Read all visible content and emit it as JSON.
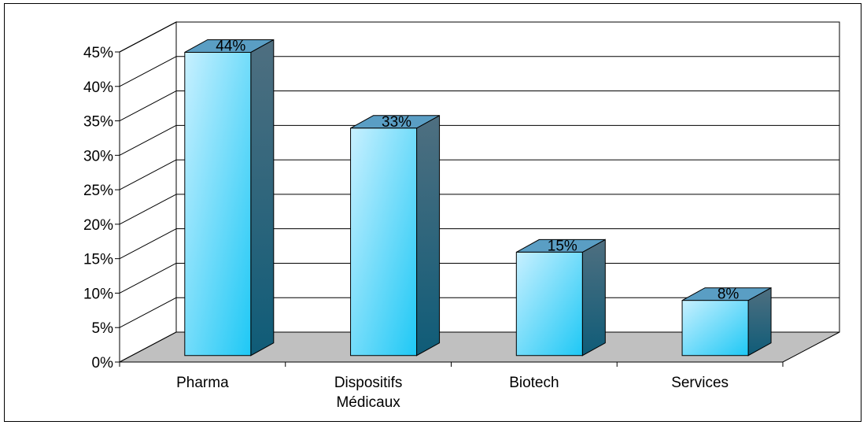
{
  "chart_data": {
    "type": "bar",
    "title": "",
    "xlabel": "",
    "ylabel": "",
    "categories": [
      "Pharma",
      "Dispositifs Médicaux",
      "Biotech",
      "Services"
    ],
    "category_lines": [
      [
        "Pharma"
      ],
      [
        "Dispositifs",
        "Médicaux"
      ],
      [
        "Biotech"
      ],
      [
        "Services"
      ]
    ],
    "values": [
      44,
      33,
      15,
      8
    ],
    "data_labels": [
      "44%",
      "33%",
      "15%",
      "8%"
    ],
    "yticks": [
      "0%",
      "5%",
      "10%",
      "15%",
      "20%",
      "25%",
      "30%",
      "35%",
      "40%",
      "45%"
    ],
    "ylim": [
      0,
      45
    ],
    "grid": true,
    "style": "3d",
    "colors": {
      "bar_front_light": "#c8f0ff",
      "bar_front_dark": "#1ec8f5",
      "bar_side": "#0f5c78",
      "bar_top": "#5a9ec4",
      "floor": "#c0c0c0",
      "grid": "#000000"
    }
  }
}
